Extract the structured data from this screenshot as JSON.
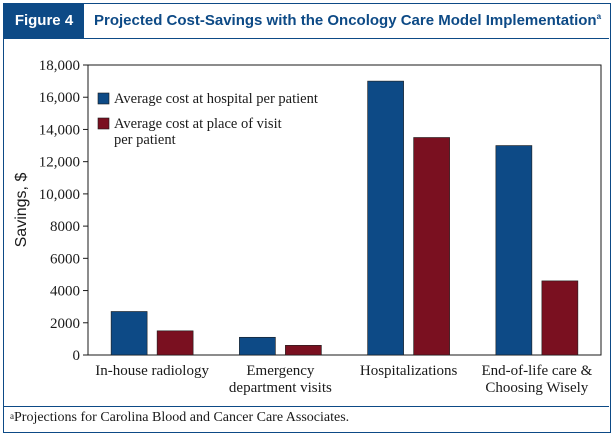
{
  "figure": {
    "label": "Figure 4",
    "title": "Projected Cost-Savings with the Oncology Care Model Implementation",
    "title_sup": "a"
  },
  "footnote": {
    "sup": "a",
    "text": "Projections for Carolina Blood and Cancer Care Associates."
  },
  "chart_data": {
    "type": "bar",
    "title": "Projected Cost-Savings with the Oncology Care Model Implementation",
    "xlabel": "",
    "ylabel": "Savings, $",
    "ylim": [
      0,
      18000
    ],
    "yticks": [
      0,
      2000,
      4000,
      6000,
      8000,
      10000,
      12000,
      14000,
      16000,
      18000
    ],
    "ytick_labels": [
      "0",
      "2000",
      "4000",
      "6000",
      "8000",
      "10,000",
      "12,000",
      "14,000",
      "16,000",
      "18,000"
    ],
    "categories": [
      [
        "In-house radiology"
      ],
      [
        "Emergency",
        "department visits"
      ],
      [
        "Hospitalizations"
      ],
      [
        "End-of-life care &",
        "Choosing Wisely"
      ]
    ],
    "series": [
      {
        "name": "Average cost at hospital per patient",
        "color": "#0d4a86",
        "values": [
          2700,
          1100,
          17000,
          13000
        ]
      },
      {
        "name": "Average cost at place of visit per patient",
        "name_lines": [
          "Average cost at place of visit",
          "per patient"
        ],
        "color": "#7a1020",
        "values": [
          1500,
          600,
          13500,
          4600
        ]
      }
    ],
    "legend": "top-left",
    "grid": false
  }
}
